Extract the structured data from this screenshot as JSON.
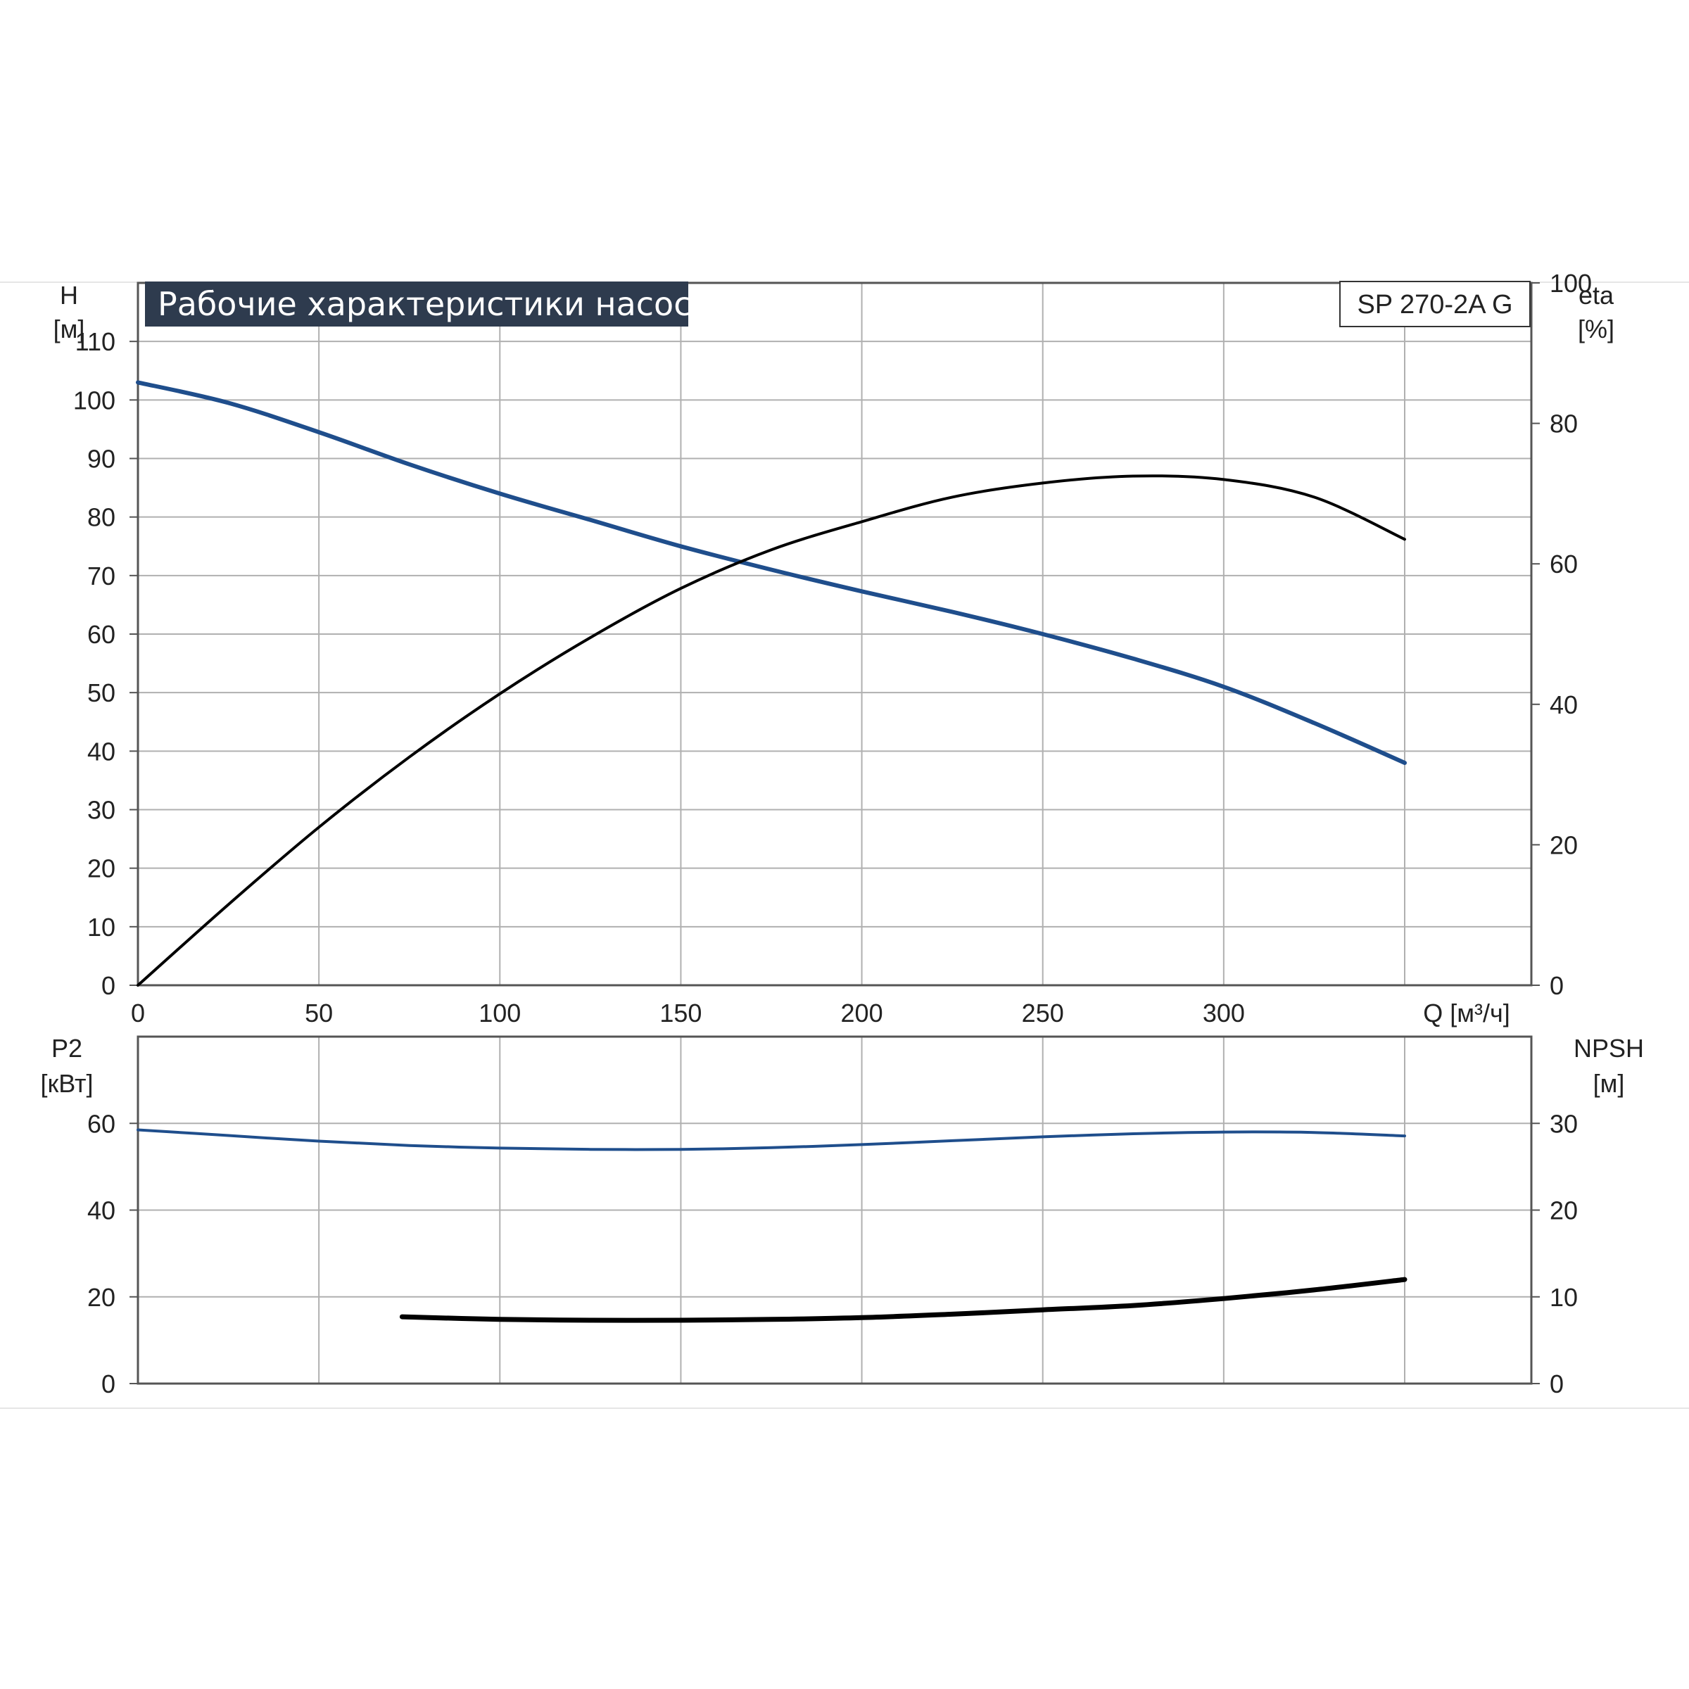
{
  "header": {
    "title": "Рабочие характеристики насоса",
    "model": "SP 270-2A G"
  },
  "axes": {
    "h_label": "H",
    "h_unit": "[м]",
    "eta_label": "eta",
    "eta_unit": "[%]",
    "q_label": "Q [м³/ч]",
    "p2_label": "P2",
    "p2_unit": "[кВт]",
    "npsh_label": "NPSH",
    "npsh_unit": "[м]"
  },
  "colors": {
    "head_curve": "#1f4e8c",
    "efficiency_curve": "#000000",
    "power_curve": "#1f4e8c",
    "npsh_curve": "#000000",
    "title_bg": "#2e3b4e",
    "grid": "#b0b0b0"
  },
  "chart_data": [
    {
      "type": "line",
      "panel": "top",
      "title": "Рабочие характеристики насоса",
      "xlabel": "Q [м³/ч]",
      "ylabel": "H [м]",
      "y2label": "eta [%]",
      "xlim": [
        0,
        385
      ],
      "ylim": [
        0,
        120
      ],
      "y2lim": [
        0,
        100
      ],
      "xticks": [
        0,
        50,
        100,
        150,
        200,
        250,
        300
      ],
      "yticks": [
        0,
        10,
        20,
        30,
        40,
        50,
        60,
        70,
        80,
        90,
        100,
        110
      ],
      "y2ticks": [
        0,
        20,
        40,
        60,
        80,
        100
      ],
      "grid": true,
      "series": [
        {
          "name": "H",
          "axis": "left",
          "x": [
            0,
            25,
            50,
            75,
            100,
            125,
            150,
            175,
            200,
            225,
            250,
            275,
            300,
            325,
            350
          ],
          "y": [
            103,
            99.5,
            94.5,
            89,
            84,
            79.5,
            75,
            71,
            67.3,
            63.8,
            60,
            55.8,
            51,
            44.8,
            38
          ]
        },
        {
          "name": "eta",
          "axis": "right",
          "x": [
            0,
            25,
            50,
            75,
            100,
            125,
            150,
            175,
            200,
            225,
            250,
            275,
            300,
            325,
            350
          ],
          "y": [
            0,
            11.5,
            22.5,
            32.5,
            41.5,
            49.5,
            56.5,
            62,
            66,
            69.5,
            71.5,
            72.5,
            72,
            69.5,
            63.5
          ]
        }
      ]
    },
    {
      "type": "line",
      "panel": "bottom",
      "xlabel": "Q [м³/ч]",
      "ylabel": "P2 [кВт]",
      "y2label": "NPSH [м]",
      "xlim": [
        0,
        385
      ],
      "ylim": [
        0,
        80
      ],
      "y2lim": [
        0,
        40
      ],
      "xticks": [
        0,
        50,
        100,
        150,
        200,
        250,
        300
      ],
      "yticks": [
        0,
        20,
        40,
        60
      ],
      "y2ticks": [
        0,
        10,
        20,
        30
      ],
      "grid": true,
      "series": [
        {
          "name": "P2",
          "axis": "left",
          "x": [
            0,
            25,
            50,
            75,
            100,
            125,
            150,
            175,
            200,
            225,
            250,
            275,
            300,
            325,
            350
          ],
          "y": [
            58.5,
            57.2,
            55.9,
            54.9,
            54.3,
            54.0,
            54.0,
            54.4,
            55.1,
            56.0,
            56.9,
            57.6,
            58.0,
            57.9,
            57.1
          ]
        },
        {
          "name": "NPSH",
          "axis": "right",
          "x": [
            73,
            100,
            125,
            150,
            175,
            200,
            225,
            250,
            275,
            300,
            325,
            350
          ],
          "y": [
            7.7,
            7.4,
            7.3,
            7.3,
            7.4,
            7.6,
            8.0,
            8.5,
            9.0,
            9.8,
            10.8,
            12.0
          ]
        }
      ]
    }
  ]
}
